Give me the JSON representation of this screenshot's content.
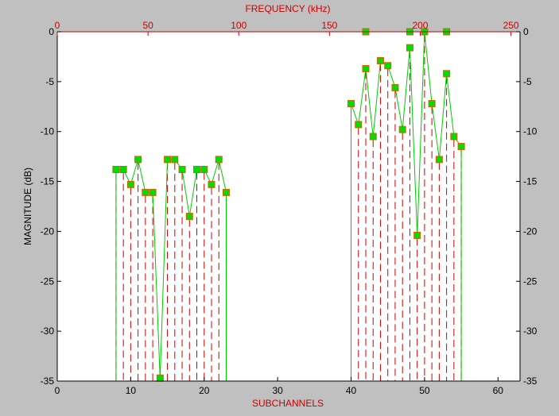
{
  "chart_data": {
    "type": "line",
    "title": "",
    "xlabel": "SUBCHANNELS",
    "ylabel": "MAGNITUDE (dB)",
    "top_xlabel": "FREQUENCY (kHz)",
    "xlim": [
      0,
      63
    ],
    "ylim": [
      -35,
      0
    ],
    "top_xlim": [
      0,
      255
    ],
    "x_ticks": [
      0,
      10,
      20,
      30,
      40,
      50,
      60
    ],
    "y_ticks": [
      0,
      -5,
      -10,
      -15,
      -20,
      -25,
      -30,
      -35
    ],
    "top_x_ticks": [
      0,
      50,
      100,
      150,
      200,
      250
    ],
    "grid": false,
    "colors": {
      "background": "#c0c0c0",
      "plot_area": "#ffffff",
      "line": "#00cc00",
      "marker_fill": "#00dd00",
      "marker_edge": "#cc6600",
      "dashed_stems": "#cc0000",
      "axes": "#000000",
      "top_axis": "#cc0000",
      "xlabel": "#cc0000",
      "ylabel": "#000000"
    },
    "series": [
      {
        "x": [
          8,
          9,
          10,
          11,
          12,
          13,
          14,
          15,
          16,
          17,
          18,
          19,
          20,
          21,
          22,
          23
        ],
        "y": [
          -13.8,
          -13.8,
          -15.3,
          -12.8,
          -16.1,
          -16.1,
          -34.7,
          -12.8,
          -12.8,
          -13.8,
          -18.5,
          -13.8,
          -13.8,
          -15.3,
          -12.8,
          -16.1
        ]
      },
      {
        "x": [
          40,
          41,
          42,
          43,
          44,
          45,
          46,
          47,
          48,
          49,
          50,
          51,
          52,
          53,
          54,
          55
        ],
        "y": [
          -7.2,
          -9.3,
          -3.7,
          -10.5,
          -2.9,
          -3.4,
          -5.6,
          -9.8,
          -1.6,
          -20.4,
          0.0,
          -7.2,
          -12.8,
          -4.2,
          -10.5,
          -11.5
        ]
      }
    ],
    "top_markers": {
      "x": [
        42,
        48,
        53
      ],
      "y": [
        0,
        0,
        0
      ]
    }
  }
}
